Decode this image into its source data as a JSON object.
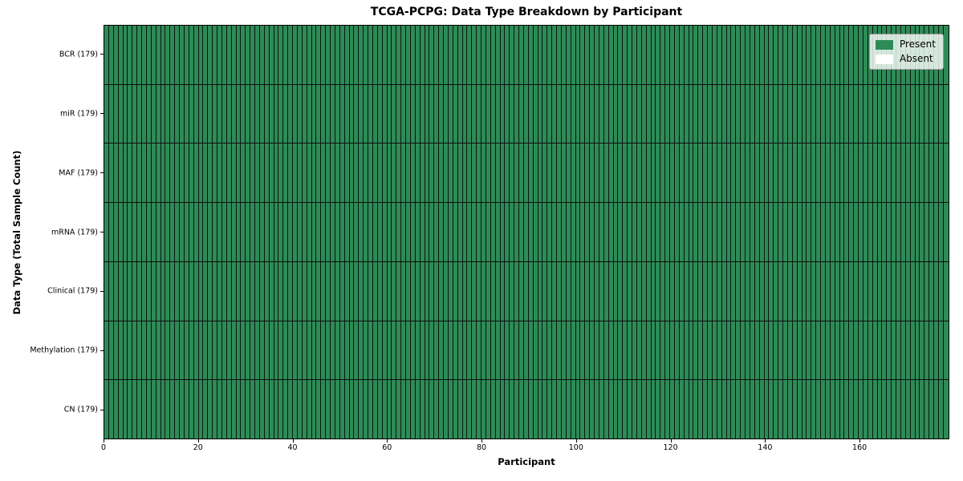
{
  "chart_data": {
    "type": "heatmap",
    "title": "TCGA-PCPG: Data Type Breakdown by Participant",
    "xlabel": "Participant",
    "ylabel": "Data Type (Total Sample Count)",
    "n_participants": 179,
    "xlim": [
      0,
      179
    ],
    "x_ticks": [
      0,
      20,
      40,
      60,
      80,
      100,
      120,
      140,
      160
    ],
    "rows": [
      {
        "label": "BCR (179)",
        "data_type": "BCR",
        "total_samples": 179,
        "present_count": 179,
        "absent_count": 0
      },
      {
        "label": "miR (179)",
        "data_type": "miR",
        "total_samples": 179,
        "present_count": 179,
        "absent_count": 0
      },
      {
        "label": "MAF (179)",
        "data_type": "MAF",
        "total_samples": 179,
        "present_count": 179,
        "absent_count": 0
      },
      {
        "label": "mRNA (179)",
        "data_type": "mRNA",
        "total_samples": 179,
        "present_count": 179,
        "absent_count": 0
      },
      {
        "label": "Clinical (179)",
        "data_type": "Clinical",
        "total_samples": 179,
        "present_count": 179,
        "absent_count": 0
      },
      {
        "label": "Methylation (179)",
        "data_type": "Methylation",
        "total_samples": 179,
        "present_count": 179,
        "absent_count": 0
      },
      {
        "label": "CN (179)",
        "data_type": "CN",
        "total_samples": 179,
        "present_count": 179,
        "absent_count": 0
      }
    ],
    "legend": [
      {
        "label": "Present",
        "color": "#2e8b57"
      },
      {
        "label": "Absent",
        "color": "#ffffff"
      }
    ],
    "colors": {
      "present": "#2e8b57",
      "absent": "#ffffff",
      "cell_edge": "rgba(0,0,0,0.82)",
      "row_separator": "#0d0d0d",
      "spine": "#000000"
    },
    "grid": true,
    "legend_position": "upper right"
  }
}
